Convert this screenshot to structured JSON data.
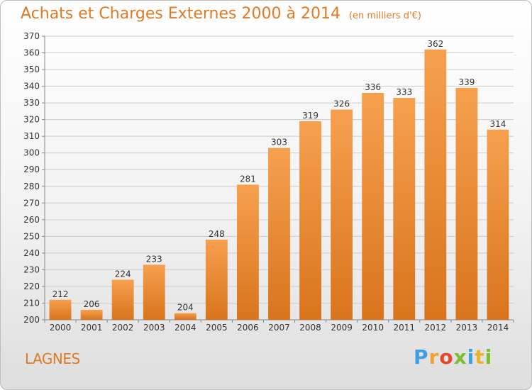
{
  "header": {
    "title": "Achats et Charges Externes 2000 à 2014",
    "unit": "(en milliers d'€)"
  },
  "footer": {
    "commune": "LAGNES",
    "logo_text": "Proxiti"
  },
  "colors": {
    "accent": "#e07a25",
    "bar_top": "#f6a04f",
    "bar_bottom": "#d9741c",
    "grid": "#cccccc"
  },
  "chart_data": {
    "type": "bar",
    "title": "Achats et Charges Externes 2000 à 2014",
    "subtitle": "(en milliers d'€)",
    "categories": [
      "2000",
      "2001",
      "2002",
      "2003",
      "2004",
      "2005",
      "2006",
      "2007",
      "2008",
      "2009",
      "2010",
      "2011",
      "2012",
      "2013",
      "2014"
    ],
    "values": [
      212,
      206,
      224,
      233,
      204,
      248,
      281,
      303,
      319,
      326,
      336,
      333,
      362,
      339,
      314
    ],
    "ylim": [
      200,
      370
    ],
    "ytick_step": 10,
    "grid": true,
    "xlabel": "",
    "ylabel": ""
  }
}
